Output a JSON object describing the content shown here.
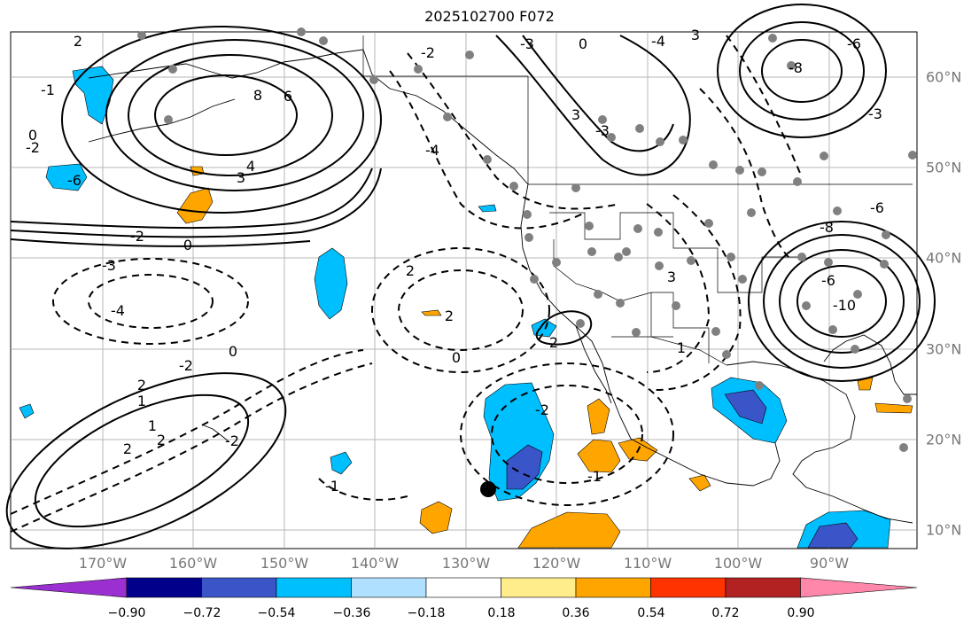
{
  "title": "2025102700 F072",
  "colors": {
    "ocean": "#ffffff",
    "coast": "#000000",
    "grid": "#9a9a9a",
    "station": "#808080",
    "marker": "#000000"
  },
  "lon_labels": [
    "170°W",
    "160°W",
    "150°W",
    "140°W",
    "130°W",
    "120°W",
    "110°W",
    "100°W",
    "90°W"
  ],
  "lat_labels": [
    "60°N",
    "50°N",
    "40°N",
    "30°N",
    "20°N",
    "10°N"
  ],
  "colorbar": {
    "ticks": [
      "−0.90",
      "−0.72",
      "−0.54",
      "−0.36",
      "−0.18",
      "0.18",
      "0.36",
      "0.54",
      "0.72",
      "0.90"
    ],
    "colors": [
      "#9b30d0",
      "#00008b",
      "#3a55c8",
      "#00bfff",
      "#b0e0ff",
      "#ffffff",
      "#ffec8b",
      "#ffa500",
      "#ff3300",
      "#b22222",
      "#ff88aa"
    ]
  },
  "contour_labels": [
    "2",
    "-1",
    "0",
    "-2",
    "-6",
    "4",
    "3",
    "-2",
    "0",
    "-3",
    "-4",
    "2",
    "2",
    "0",
    "-2",
    "2",
    "1",
    "0",
    "1",
    "2",
    "2",
    "-2",
    "-1",
    "-2",
    "-1",
    "2",
    "1",
    "3",
    "-3",
    "3",
    "-4",
    "-3",
    "-2",
    "0",
    "-8",
    "-6",
    "-3",
    "-6",
    "-10",
    "-8",
    "-6",
    "-4",
    "6",
    "8",
    "3"
  ]
}
